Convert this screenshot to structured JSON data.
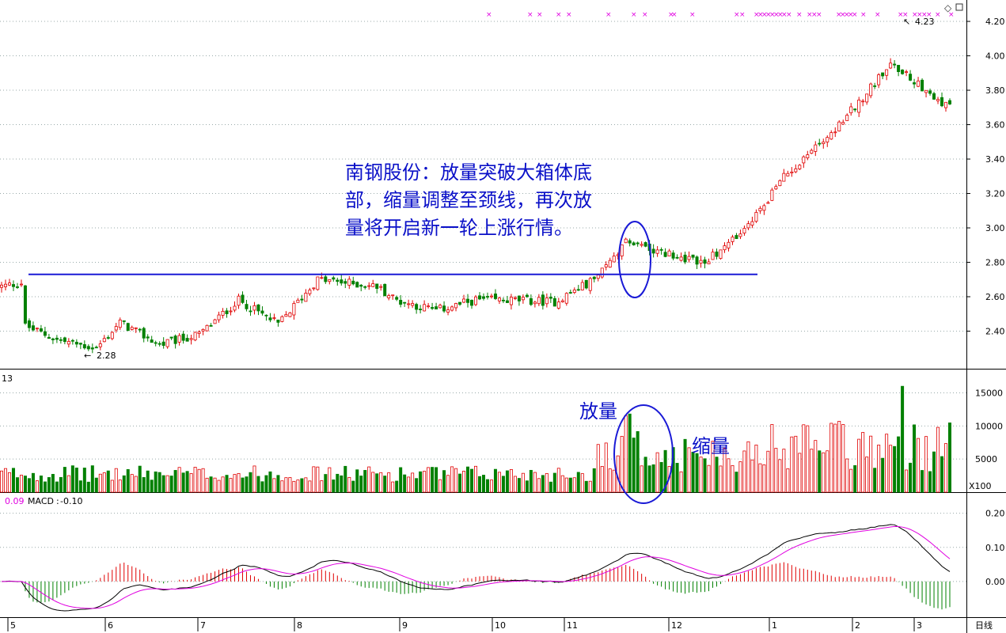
{
  "window": {
    "title_left": "13",
    "period_label": "日线",
    "volume_unit": "X100"
  },
  "colors": {
    "up": "#e00000",
    "down": "#008000",
    "annotation": "#0a10c8",
    "dif": "#000000",
    "dea": "#e000e0",
    "marker": "#e000e0"
  },
  "annotation": {
    "lines": [
      "南钢股份：放量突破大箱体底",
      "部，缩量调整至颈线，再次放",
      "量将开启新一轮上涨行情。"
    ],
    "volume_up_label": "放量",
    "volume_down_label": "缩量"
  },
  "chart_data": [
    {
      "type": "candlestick",
      "panel": "price",
      "y_ticks": [
        "4.20",
        "4.00",
        "3.80",
        "3.60",
        "3.40",
        "3.20",
        "3.00",
        "2.80",
        "2.60",
        "2.40"
      ],
      "ylim": [
        2.2,
        4.26
      ],
      "x_ticks": [
        "5",
        "6",
        "7",
        "8",
        "9",
        "10",
        "11",
        "12",
        "1",
        "2",
        "3"
      ],
      "low_label": "2.28",
      "high_label": "4.23",
      "neckline": 2.73,
      "waypoints": [
        [
          0,
          2.66
        ],
        [
          5,
          2.68
        ],
        [
          6,
          2.43
        ],
        [
          14,
          2.35
        ],
        [
          24,
          2.3
        ],
        [
          30,
          2.45
        ],
        [
          40,
          2.32
        ],
        [
          50,
          2.38
        ],
        [
          60,
          2.58
        ],
        [
          70,
          2.44
        ],
        [
          80,
          2.7
        ],
        [
          95,
          2.66
        ],
        [
          100,
          2.58
        ],
        [
          110,
          2.52
        ],
        [
          120,
          2.58
        ],
        [
          130,
          2.58
        ],
        [
          140,
          2.57
        ],
        [
          150,
          2.7
        ],
        [
          158,
          2.92
        ],
        [
          168,
          2.85
        ],
        [
          178,
          2.8
        ],
        [
          188,
          2.98
        ],
        [
          198,
          3.3
        ],
        [
          212,
          3.6
        ],
        [
          225,
          3.95
        ],
        [
          230,
          3.88
        ],
        [
          235,
          3.78
        ],
        [
          240,
          3.7
        ]
      ],
      "bars": 241
    },
    {
      "type": "bar",
      "panel": "volume",
      "y_ticks": [
        "15000",
        "10000",
        "5000"
      ],
      "ylim": [
        0,
        16500
      ],
      "unit": "X100"
    },
    {
      "type": "line",
      "panel": "macd",
      "series": [
        {
          "name": "MACD",
          "value_label": "-0.10"
        }
      ],
      "dif_label": "0.09",
      "y_ticks": [
        "0.20",
        "0.10",
        "0.00"
      ],
      "ylim": [
        -0.1,
        0.22
      ]
    }
  ]
}
